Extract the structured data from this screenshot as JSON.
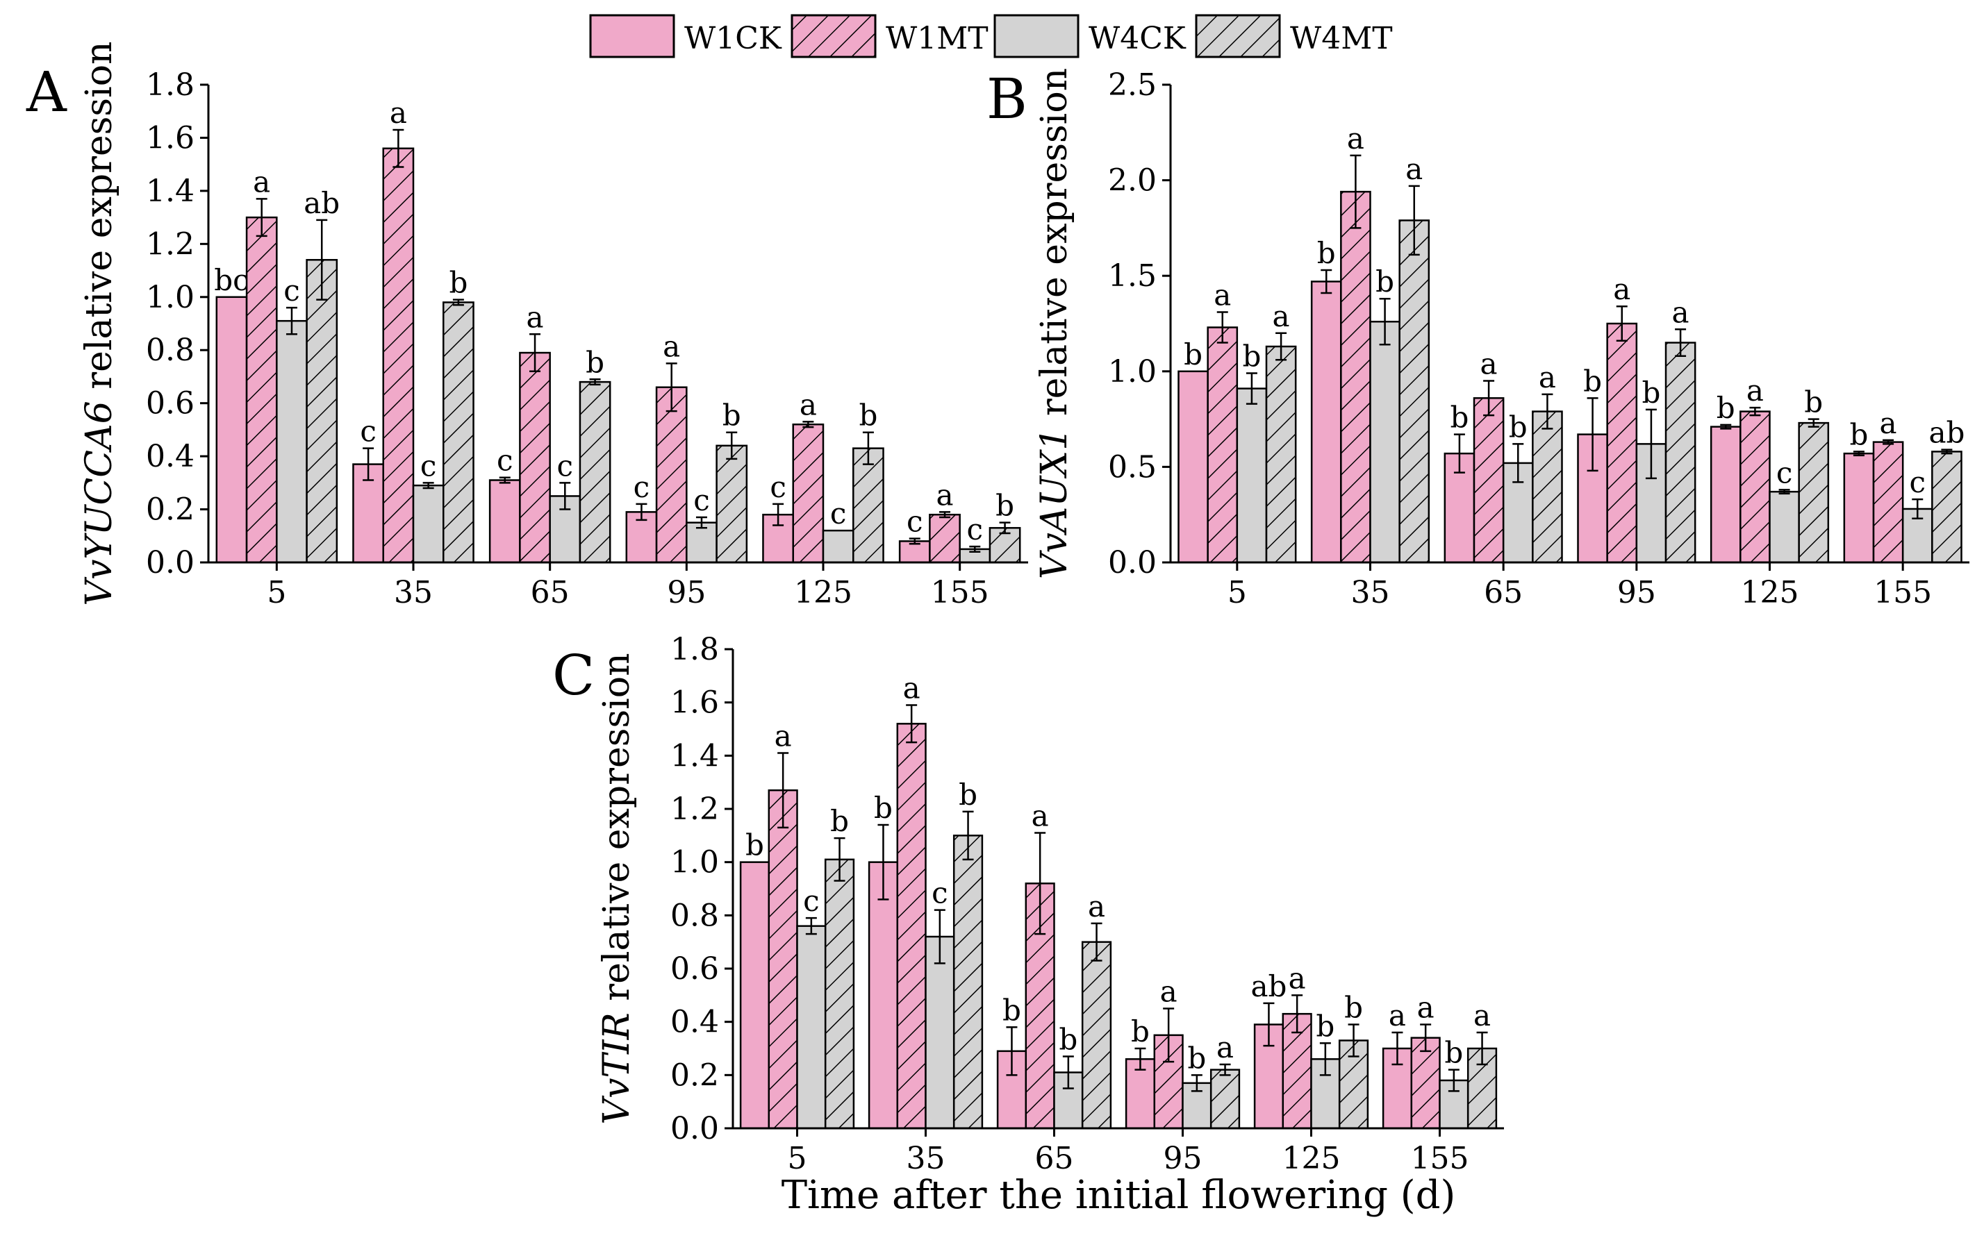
{
  "legend": [
    {
      "name": "W1CK",
      "pattern": "solid",
      "color": "#f0a9c9"
    },
    {
      "name": "W1MT",
      "pattern": "hatch",
      "color": "#f0a9c9"
    },
    {
      "name": "W4CK",
      "pattern": "solid",
      "color": "#d3d3d3"
    },
    {
      "name": "W4MT",
      "pattern": "hatch",
      "color": "#d3d3d3"
    }
  ],
  "xlabel": "Time after the initial flowering (d)",
  "chart_data": [
    {
      "type": "bar",
      "panel": "A",
      "ylabel_italic": "VvYUCCA6",
      "ylabel_rest": " relative expression",
      "ylim": [
        0,
        1.8
      ],
      "yticks": [
        "0.0",
        "0.2",
        "0.4",
        "0.6",
        "0.8",
        "1.0",
        "1.2",
        "1.4",
        "1.6",
        "1.8"
      ],
      "categories": [
        "5",
        "35",
        "65",
        "95",
        "125",
        "155"
      ],
      "series": [
        {
          "name": "W1CK",
          "values": [
            1.0,
            0.37,
            0.31,
            0.19,
            0.18,
            0.08
          ],
          "errors": [
            0.0,
            0.06,
            0.01,
            0.03,
            0.04,
            0.01
          ],
          "labels": [
            "bc",
            "c",
            "c",
            "c",
            "c",
            "c"
          ]
        },
        {
          "name": "W1MT",
          "values": [
            1.3,
            1.56,
            0.79,
            0.66,
            0.52,
            0.18
          ],
          "errors": [
            0.07,
            0.07,
            0.07,
            0.09,
            0.01,
            0.01
          ],
          "labels": [
            "a",
            "a",
            "a",
            "a",
            "a",
            "a"
          ]
        },
        {
          "name": "W4CK",
          "values": [
            0.91,
            0.29,
            0.25,
            0.15,
            0.12,
            0.05
          ],
          "errors": [
            0.05,
            0.01,
            0.05,
            0.02,
            0.0,
            0.01
          ],
          "labels": [
            "c",
            "c",
            "c",
            "c",
            "c",
            "c"
          ]
        },
        {
          "name": "W4MT",
          "values": [
            1.14,
            0.98,
            0.68,
            0.44,
            0.43,
            0.13
          ],
          "errors": [
            0.15,
            0.01,
            0.01,
            0.05,
            0.06,
            0.02
          ],
          "labels": [
            "ab",
            "b",
            "b",
            "b",
            "b",
            "b"
          ]
        }
      ]
    },
    {
      "type": "bar",
      "panel": "B",
      "ylabel_italic": "VvAUX1",
      "ylabel_rest": " relative expression",
      "ylim": [
        0,
        2.5
      ],
      "yticks": [
        "0.0",
        "0.5",
        "1.0",
        "1.5",
        "2.0",
        "2.5"
      ],
      "categories": [
        "5",
        "35",
        "65",
        "95",
        "125",
        "155"
      ],
      "series": [
        {
          "name": "W1CK",
          "values": [
            1.0,
            1.47,
            0.57,
            0.67,
            0.71,
            0.57
          ],
          "errors": [
            0.0,
            0.06,
            0.1,
            0.19,
            0.01,
            0.01
          ],
          "labels": [
            "b",
            "b",
            "b",
            "b",
            "b",
            "b"
          ]
        },
        {
          "name": "W1MT",
          "values": [
            1.23,
            1.94,
            0.86,
            1.25,
            0.79,
            0.63
          ],
          "errors": [
            0.08,
            0.19,
            0.09,
            0.09,
            0.02,
            0.01
          ],
          "labels": [
            "a",
            "a",
            "a",
            "a",
            "a",
            "a"
          ]
        },
        {
          "name": "W4CK",
          "values": [
            0.91,
            1.26,
            0.52,
            0.62,
            0.37,
            0.28
          ],
          "errors": [
            0.08,
            0.12,
            0.1,
            0.18,
            0.01,
            0.05
          ],
          "labels": [
            "b",
            "b",
            "b",
            "b",
            "c",
            "c"
          ]
        },
        {
          "name": "W4MT",
          "values": [
            1.13,
            1.79,
            0.79,
            1.15,
            0.73,
            0.58
          ],
          "errors": [
            0.07,
            0.18,
            0.09,
            0.07,
            0.02,
            0.01
          ],
          "labels": [
            "a",
            "a",
            "a",
            "a",
            "b",
            "ab"
          ]
        }
      ]
    },
    {
      "type": "bar",
      "panel": "C",
      "ylabel_italic": "VvTIR",
      "ylabel_rest": " relative expression",
      "ylim": [
        0,
        1.8
      ],
      "yticks": [
        "0.0",
        "0.2",
        "0.4",
        "0.6",
        "0.8",
        "1.0",
        "1.2",
        "1.4",
        "1.6",
        "1.8"
      ],
      "categories": [
        "5",
        "35",
        "65",
        "95",
        "125",
        "155"
      ],
      "series": [
        {
          "name": "W1CK",
          "values": [
            1.0,
            1.0,
            0.29,
            0.26,
            0.39,
            0.3
          ],
          "errors": [
            0.0,
            0.14,
            0.09,
            0.04,
            0.08,
            0.06
          ],
          "labels": [
            "b",
            "b",
            "b",
            "b",
            "ab",
            "a"
          ]
        },
        {
          "name": "W1MT",
          "values": [
            1.27,
            1.52,
            0.92,
            0.35,
            0.43,
            0.34
          ],
          "errors": [
            0.14,
            0.07,
            0.19,
            0.1,
            0.07,
            0.05
          ],
          "labels": [
            "a",
            "a",
            "a",
            "a",
            "a",
            "a"
          ]
        },
        {
          "name": "W4CK",
          "values": [
            0.76,
            0.72,
            0.21,
            0.17,
            0.26,
            0.18
          ],
          "errors": [
            0.03,
            0.1,
            0.06,
            0.03,
            0.06,
            0.04
          ],
          "labels": [
            "c",
            "c",
            "b",
            "b",
            "b",
            "b"
          ]
        },
        {
          "name": "W4MT",
          "values": [
            1.01,
            1.1,
            0.7,
            0.22,
            0.33,
            0.3
          ],
          "errors": [
            0.08,
            0.09,
            0.07,
            0.02,
            0.06,
            0.06
          ],
          "labels": [
            "b",
            "b",
            "a",
            "a",
            "b",
            "a"
          ]
        }
      ]
    }
  ]
}
